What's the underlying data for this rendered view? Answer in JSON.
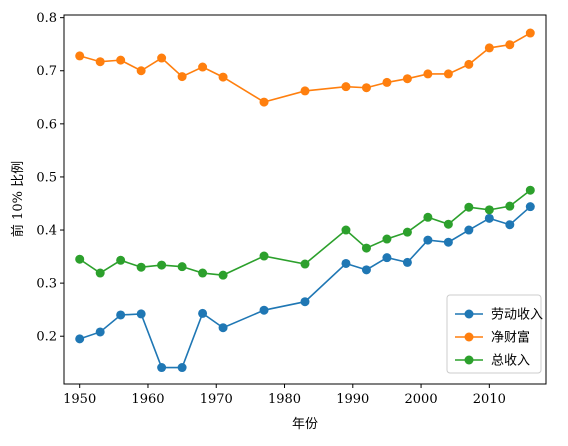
{
  "chart_data": {
    "type": "line",
    "title": "",
    "xlabel": "年份",
    "ylabel": "前 10% 比例",
    "xlim": [
      1947.7,
      2018.3
    ],
    "ylim": [
      0.11,
      0.805
    ],
    "x_ticks": [
      1950,
      1960,
      1970,
      1980,
      1990,
      2000,
      2010
    ],
    "x_tick_labels": [
      "1950",
      "1960",
      "1970",
      "1980",
      "1990",
      "2000",
      "2010"
    ],
    "y_ticks": [
      0.2,
      0.3,
      0.4,
      0.5,
      0.6,
      0.7,
      0.8
    ],
    "y_tick_labels": [
      "0.2",
      "0.3",
      "0.4",
      "0.5",
      "0.6",
      "0.7",
      "0.8"
    ],
    "grid": false,
    "legend_position": "lower-right",
    "series": [
      {
        "name": "劳动收入",
        "color": "#1f77b4",
        "x": [
          1950,
          1953,
          1956,
          1959,
          1962,
          1965,
          1968,
          1971,
          1977,
          1983,
          1989,
          1992,
          1995,
          1998,
          2001,
          2004,
          2007,
          2010,
          2013,
          2016
        ],
        "y": [
          0.195,
          0.208,
          0.24,
          0.242,
          0.141,
          0.141,
          0.243,
          0.216,
          0.249,
          0.265,
          0.337,
          0.325,
          0.348,
          0.339,
          0.381,
          0.377,
          0.4,
          0.422,
          0.41,
          0.444
        ]
      },
      {
        "name": "净财富",
        "color": "#ff7f0e",
        "x": [
          1950,
          1953,
          1956,
          1959,
          1962,
          1965,
          1968,
          1971,
          1977,
          1983,
          1989,
          1992,
          1995,
          1998,
          2001,
          2004,
          2007,
          2010,
          2013,
          2016
        ],
        "y": [
          0.728,
          0.717,
          0.72,
          0.7,
          0.724,
          0.689,
          0.707,
          0.688,
          0.641,
          0.662,
          0.67,
          0.668,
          0.678,
          0.685,
          0.694,
          0.694,
          0.712,
          0.743,
          0.749,
          0.771
        ]
      },
      {
        "name": "总收入",
        "color": "#2ca02c",
        "x": [
          1950,
          1953,
          1956,
          1959,
          1962,
          1965,
          1968,
          1971,
          1977,
          1983,
          1989,
          1992,
          1995,
          1998,
          2001,
          2004,
          2007,
          2010,
          2013,
          2016
        ],
        "y": [
          0.345,
          0.319,
          0.343,
          0.33,
          0.334,
          0.331,
          0.319,
          0.315,
          0.351,
          0.336,
          0.4,
          0.366,
          0.383,
          0.396,
          0.424,
          0.411,
          0.443,
          0.438,
          0.445,
          0.475
        ]
      }
    ]
  }
}
